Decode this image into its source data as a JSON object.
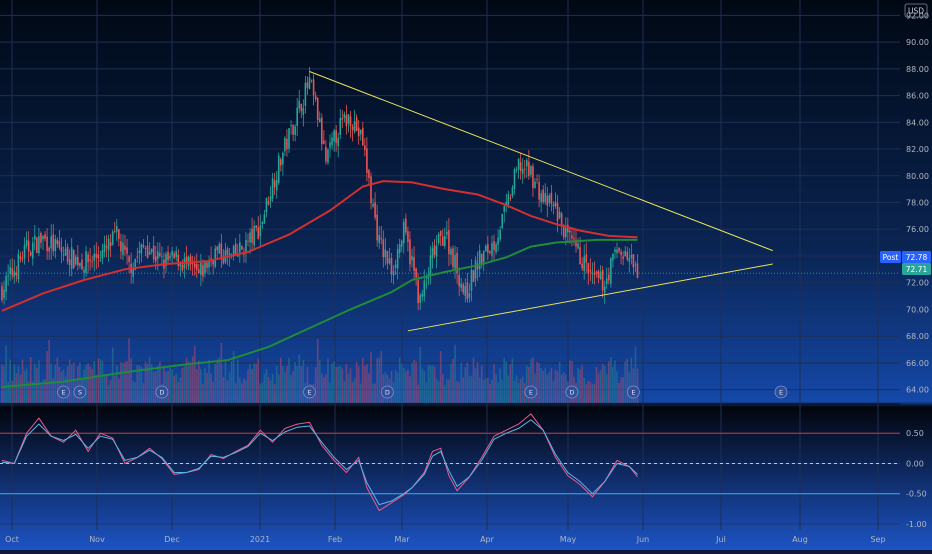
{
  "currency": "USD",
  "badges": {
    "post_label": "Post",
    "post_price": "72.78",
    "last_price": "72.71"
  },
  "colors": {
    "up": "#26a69a",
    "down": "#ef5350",
    "ma_fast": "#d32f2f",
    "ma_slow": "#1e8c3a",
    "trendline": "#e8e35a",
    "osc_fast": "#ef5a8a",
    "osc_slow": "#5ab4e8",
    "osc_upper": "#d32f2f",
    "osc_lower": "#29b6f6",
    "badge_post": "#2962ff",
    "badge_last": "#26a69a"
  },
  "chart_data": [
    {
      "type": "candlestick",
      "x_axis_labels": [
        "Oct",
        "Nov",
        "Dec",
        "2021",
        "Feb",
        "Mar",
        "Apr",
        "May",
        "Jun",
        "Jul",
        "Aug",
        "Sep"
      ],
      "y_ticks": [
        64.0,
        66.0,
        68.0,
        70.0,
        72.0,
        74.0,
        76.0,
        78.0,
        80.0,
        82.0,
        84.0,
        86.0,
        88.0,
        90.0,
        92.0
      ],
      "ylim": [
        63,
        93
      ],
      "price_anchors": [
        {
          "t": 0,
          "v": 71.5
        },
        {
          "t": 4,
          "v": 72.5
        },
        {
          "t": 12,
          "v": 74.5
        },
        {
          "t": 20,
          "v": 75.3
        },
        {
          "t": 30,
          "v": 74.2
        },
        {
          "t": 40,
          "v": 73.5
        },
        {
          "t": 50,
          "v": 74.3
        },
        {
          "t": 56,
          "v": 75.5
        },
        {
          "t": 62,
          "v": 73.2
        },
        {
          "t": 70,
          "v": 74.8
        },
        {
          "t": 78,
          "v": 73.5
        },
        {
          "t": 86,
          "v": 73.8
        },
        {
          "t": 96,
          "v": 72.5
        },
        {
          "t": 104,
          "v": 74.3
        },
        {
          "t": 112,
          "v": 73.8
        },
        {
          "t": 120,
          "v": 75.0
        },
        {
          "t": 126,
          "v": 76.2
        },
        {
          "t": 132,
          "v": 79.5
        },
        {
          "t": 140,
          "v": 83.0
        },
        {
          "t": 146,
          "v": 85.5
        },
        {
          "t": 150,
          "v": 87.0
        },
        {
          "t": 154,
          "v": 84.5
        },
        {
          "t": 158,
          "v": 81.0
        },
        {
          "t": 164,
          "v": 83.5
        },
        {
          "t": 170,
          "v": 84.5
        },
        {
          "t": 176,
          "v": 82.5
        },
        {
          "t": 180,
          "v": 78.5
        },
        {
          "t": 184,
          "v": 75.0
        },
        {
          "t": 190,
          "v": 73.0
        },
        {
          "t": 196,
          "v": 75.8
        },
        {
          "t": 200,
          "v": 73.5
        },
        {
          "t": 204,
          "v": 70.5
        },
        {
          "t": 210,
          "v": 74.0
        },
        {
          "t": 216,
          "v": 75.8
        },
        {
          "t": 222,
          "v": 73.0
        },
        {
          "t": 226,
          "v": 71.0
        },
        {
          "t": 232,
          "v": 73.5
        },
        {
          "t": 240,
          "v": 75.0
        },
        {
          "t": 246,
          "v": 77.5
        },
        {
          "t": 252,
          "v": 80.8
        },
        {
          "t": 258,
          "v": 80.2
        },
        {
          "t": 264,
          "v": 78.2
        },
        {
          "t": 270,
          "v": 77.5
        },
        {
          "t": 276,
          "v": 75.2
        },
        {
          "t": 282,
          "v": 74.0
        },
        {
          "t": 288,
          "v": 72.2
        },
        {
          "t": 294,
          "v": 72.0
        },
        {
          "t": 300,
          "v": 74.5
        },
        {
          "t": 306,
          "v": 73.8
        },
        {
          "t": 310,
          "v": 72.7
        }
      ],
      "moving_averages": [
        {
          "points": [
            [
              0,
              69.9
            ],
            [
              20,
              71.2
            ],
            [
              40,
              72.2
            ],
            [
              60,
              73.0
            ],
            [
              80,
              73.4
            ],
            [
              100,
              73.6
            ],
            [
              120,
              74.3
            ],
            [
              140,
              75.6
            ],
            [
              160,
              77.4
            ],
            [
              176,
              79.2
            ],
            [
              186,
              79.6
            ],
            [
              200,
              79.5
            ],
            [
              216,
              79.0
            ],
            [
              232,
              78.6
            ],
            [
              246,
              77.8
            ],
            [
              258,
              77.0
            ],
            [
              270,
              76.4
            ],
            [
              282,
              75.9
            ],
            [
              296,
              75.5
            ],
            [
              310,
              75.4
            ]
          ]
        },
        {
          "points": [
            [
              0,
              64.2
            ],
            [
              30,
              64.6
            ],
            [
              60,
              65.3
            ],
            [
              90,
              65.9
            ],
            [
              110,
              66.2
            ],
            [
              130,
              67.2
            ],
            [
              150,
              68.6
            ],
            [
              170,
              70.0
            ],
            [
              190,
              71.3
            ],
            [
              200,
              72.2
            ],
            [
              216,
              72.8
            ],
            [
              232,
              73.3
            ],
            [
              246,
              73.9
            ],
            [
              258,
              74.7
            ],
            [
              270,
              75.0
            ],
            [
              290,
              75.2
            ],
            [
              310,
              75.2
            ]
          ]
        }
      ],
      "trendlines": [
        {
          "from": [
            150,
            87.8
          ],
          "to": [
            376,
            74.4
          ]
        },
        {
          "from": [
            198,
            68.4
          ],
          "to": [
            376,
            73.4
          ]
        }
      ],
      "event_markers": [
        {
          "t": 30,
          "label": "E"
        },
        {
          "t": 38,
          "label": "S"
        },
        {
          "t": 78,
          "label": "D"
        },
        {
          "t": 150,
          "label": "E"
        },
        {
          "t": 188,
          "label": "D"
        },
        {
          "t": 258,
          "label": "E"
        },
        {
          "t": 278,
          "label": "D"
        },
        {
          "t": 308,
          "label": "E"
        },
        {
          "t": 380,
          "label": "E"
        }
      ]
    },
    {
      "type": "line",
      "y_ticks": [
        0.5,
        0.0,
        -0.5,
        -1.0
      ],
      "ylim": [
        -1.1,
        0.95
      ],
      "reference_levels": [
        0.5,
        0.0,
        -0.5
      ],
      "series": [
        {
          "points": [
            [
              0,
              0.05
            ],
            [
              6,
              0.0
            ],
            [
              12,
              0.5
            ],
            [
              18,
              0.75
            ],
            [
              24,
              0.45
            ],
            [
              30,
              0.35
            ],
            [
              36,
              0.55
            ],
            [
              42,
              0.2
            ],
            [
              48,
              0.5
            ],
            [
              54,
              0.42
            ],
            [
              60,
              0.0
            ],
            [
              66,
              0.1
            ],
            [
              72,
              0.25
            ],
            [
              78,
              0.08
            ],
            [
              84,
              -0.18
            ],
            [
              90,
              -0.15
            ],
            [
              96,
              -0.1
            ],
            [
              102,
              0.15
            ],
            [
              108,
              0.08
            ],
            [
              114,
              0.2
            ],
            [
              120,
              0.3
            ],
            [
              126,
              0.55
            ],
            [
              132,
              0.35
            ],
            [
              138,
              0.58
            ],
            [
              144,
              0.65
            ],
            [
              150,
              0.68
            ],
            [
              156,
              0.3
            ],
            [
              162,
              0.05
            ],
            [
              168,
              -0.15
            ],
            [
              174,
              0.1
            ],
            [
              178,
              -0.4
            ],
            [
              184,
              -0.78
            ],
            [
              190,
              -0.65
            ],
            [
              196,
              -0.52
            ],
            [
              200,
              -0.4
            ],
            [
              206,
              -0.15
            ],
            [
              210,
              0.2
            ],
            [
              214,
              0.25
            ],
            [
              218,
              -0.2
            ],
            [
              222,
              -0.45
            ],
            [
              228,
              -0.22
            ],
            [
              234,
              0.1
            ],
            [
              240,
              0.45
            ],
            [
              246,
              0.55
            ],
            [
              252,
              0.65
            ],
            [
              258,
              0.82
            ],
            [
              264,
              0.55
            ],
            [
              270,
              0.1
            ],
            [
              276,
              -0.2
            ],
            [
              282,
              -0.35
            ],
            [
              288,
              -0.55
            ],
            [
              294,
              -0.3
            ],
            [
              300,
              0.05
            ],
            [
              306,
              -0.05
            ],
            [
              310,
              -0.22
            ]
          ]
        },
        {
          "points": [
            [
              0,
              0.02
            ],
            [
              6,
              0.0
            ],
            [
              12,
              0.45
            ],
            [
              18,
              0.65
            ],
            [
              24,
              0.45
            ],
            [
              30,
              0.38
            ],
            [
              36,
              0.48
            ],
            [
              42,
              0.25
            ],
            [
              48,
              0.45
            ],
            [
              54,
              0.4
            ],
            [
              60,
              0.05
            ],
            [
              66,
              0.1
            ],
            [
              72,
              0.22
            ],
            [
              78,
              0.1
            ],
            [
              84,
              -0.15
            ],
            [
              90,
              -0.15
            ],
            [
              96,
              -0.08
            ],
            [
              102,
              0.12
            ],
            [
              108,
              0.1
            ],
            [
              114,
              0.18
            ],
            [
              120,
              0.28
            ],
            [
              126,
              0.5
            ],
            [
              132,
              0.38
            ],
            [
              138,
              0.52
            ],
            [
              144,
              0.6
            ],
            [
              150,
              0.62
            ],
            [
              156,
              0.35
            ],
            [
              162,
              0.1
            ],
            [
              168,
              -0.1
            ],
            [
              174,
              0.05
            ],
            [
              178,
              -0.32
            ],
            [
              184,
              -0.68
            ],
            [
              190,
              -0.62
            ],
            [
              196,
              -0.5
            ],
            [
              200,
              -0.4
            ],
            [
              206,
              -0.18
            ],
            [
              210,
              0.12
            ],
            [
              214,
              0.2
            ],
            [
              218,
              -0.12
            ],
            [
              222,
              -0.38
            ],
            [
              228,
              -0.22
            ],
            [
              234,
              0.05
            ],
            [
              240,
              0.4
            ],
            [
              246,
              0.5
            ],
            [
              252,
              0.58
            ],
            [
              258,
              0.72
            ],
            [
              264,
              0.55
            ],
            [
              270,
              0.15
            ],
            [
              276,
              -0.15
            ],
            [
              282,
              -0.3
            ],
            [
              288,
              -0.5
            ],
            [
              294,
              -0.3
            ],
            [
              300,
              0.0
            ],
            [
              306,
              -0.05
            ],
            [
              310,
              -0.18
            ]
          ]
        }
      ]
    }
  ]
}
